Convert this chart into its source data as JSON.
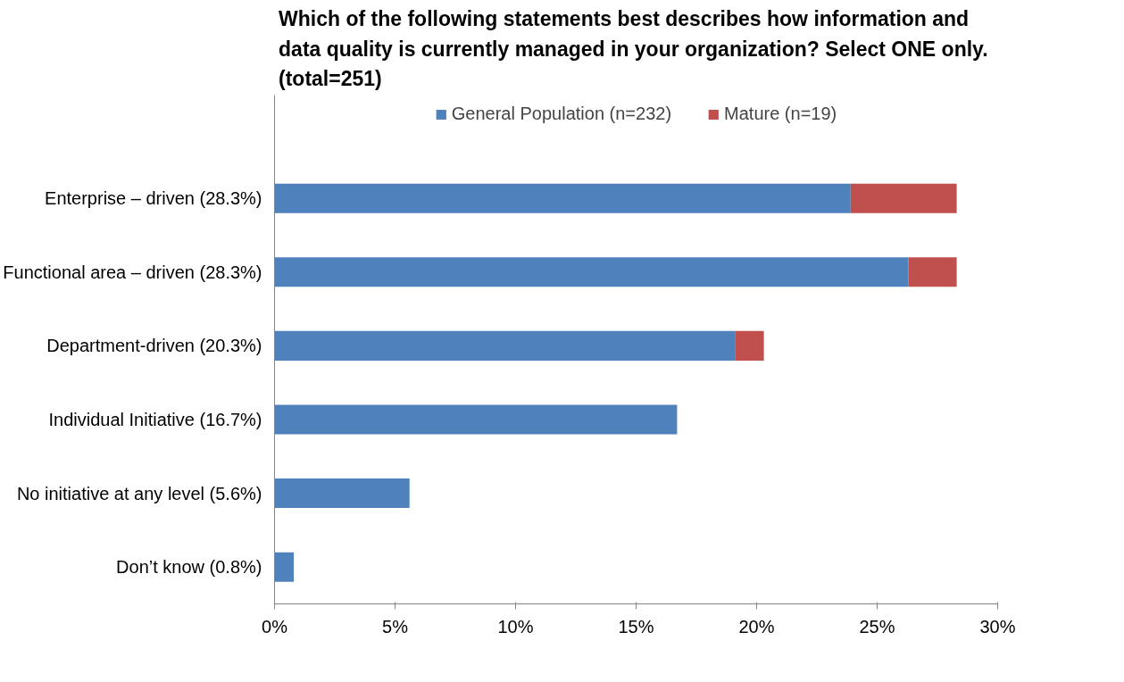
{
  "chart_data": {
    "type": "bar",
    "orientation": "horizontal",
    "stacked": true,
    "title": "Which of the following statements best describes how information and\ndata quality is currently managed in your organization?  Select ONE only.\n(total=251)",
    "categories": [
      "Enterprise – driven (28.3%)",
      "Functional area – driven (28.3%)",
      "Department-driven (20.3%)",
      "Individual Initiative (16.7%)",
      "No initiative at any level (5.6%)",
      "Don’t know (0.8%)"
    ],
    "series": [
      {
        "name": "General Population (n=232)",
        "color": "#4f81bd",
        "values": [
          23.9,
          26.3,
          19.1,
          16.7,
          5.6,
          0.8
        ]
      },
      {
        "name": "Mature (n=19)",
        "color": "#c0504d",
        "values": [
          4.4,
          2.0,
          1.2,
          0,
          0,
          0
        ]
      }
    ],
    "xlim": [
      0,
      30
    ],
    "xticks": [
      {
        "value": 0,
        "label": "0%"
      },
      {
        "value": 5,
        "label": "5%"
      },
      {
        "value": 10,
        "label": "10%"
      },
      {
        "value": 15,
        "label": "15%"
      },
      {
        "value": 20,
        "label": "20%"
      },
      {
        "value": 25,
        "label": "25%"
      },
      {
        "value": 30,
        "label": "30%"
      }
    ],
    "grid": false,
    "legend": "top"
  }
}
